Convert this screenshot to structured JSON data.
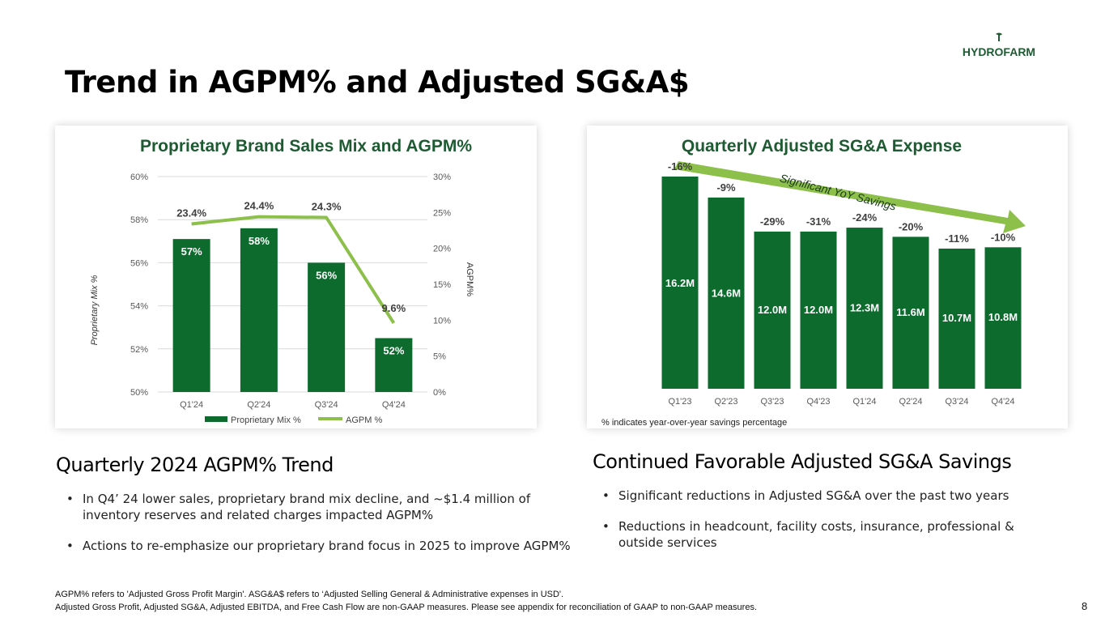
{
  "page": {
    "title": "Trend in AGPM% and Adjusted SG&A$",
    "logo_text": "HYDROFARM",
    "page_number": "8"
  },
  "colors": {
    "dark_green": "#0d6b2e",
    "mid_green": "#1b7a3a",
    "light_green": "#8cc04a",
    "title_green": "#1e5a32"
  },
  "left_chart": {
    "chart_data": {
      "type": "bar",
      "title": "Proprietary Brand Sales Mix and AGPM%",
      "categories": [
        "Q1'24",
        "Q2'24",
        "Q3'24",
        "Q4'24"
      ],
      "series": [
        {
          "name": "Proprietary Mix %",
          "type": "bar",
          "axis": "left",
          "values": [
            57.1,
            57.6,
            56.0,
            52.5
          ],
          "labels": [
            "57%",
            "58%",
            "56%",
            "52%"
          ]
        },
        {
          "name": "AGPM %",
          "type": "line",
          "axis": "right",
          "values": [
            23.4,
            24.4,
            24.3,
            9.6
          ],
          "labels": [
            "23.4%",
            "24.4%",
            "24.3%",
            "9.6%"
          ]
        }
      ],
      "ylabel": "Proprietary Mix %",
      "y2label": "AGPM%",
      "ylim": [
        50,
        60
      ],
      "y2lim": [
        0,
        30
      ],
      "yticks": [
        "50%",
        "52%",
        "54%",
        "56%",
        "58%",
        "60%"
      ],
      "y2ticks": [
        "0%",
        "5%",
        "10%",
        "15%",
        "20%",
        "25%",
        "30%"
      ],
      "legend": [
        "Proprietary Mix %",
        "AGPM %"
      ],
      "legend_position": "bottom",
      "grid": true
    }
  },
  "right_chart": {
    "chart_data": {
      "type": "bar",
      "title": "Quarterly Adjusted SG&A Expense",
      "categories": [
        "Q1'23",
        "Q2'23",
        "Q3'23",
        "Q4'23",
        "Q1'24",
        "Q2'24",
        "Q3'24",
        "Q4'24"
      ],
      "values": [
        16.2,
        14.6,
        12.0,
        12.0,
        12.3,
        11.6,
        10.7,
        10.8
      ],
      "value_labels": [
        "16.2M",
        "14.6M",
        "12.0M",
        "12.0M",
        "12.3M",
        "11.6M",
        "10.7M",
        "10.8M"
      ],
      "yoy_labels": [
        "-16%",
        "-9%",
        "-29%",
        "-31%",
        "-24%",
        "-20%",
        "-11%",
        "-10%"
      ],
      "annotation": "Significant YoY Savings",
      "grid": false
    },
    "note": "% indicates year-over-year savings percentage"
  },
  "left_section": {
    "heading": "Quarterly 2024 AGPM% Trend",
    "bullets": [
      "In Q4’ 24 lower sales, proprietary brand mix decline, and ~$1.4 million of inventory reserves and related charges impacted AGPM%",
      "Actions to re-emphasize our proprietary brand focus in 2025 to improve AGPM%"
    ]
  },
  "right_section": {
    "heading": "Continued Favorable Adjusted SG&A Savings",
    "bullets": [
      "Significant reductions in Adjusted SG&A over the past two years",
      "Reductions in headcount, facility costs, insurance, professional & outside services"
    ]
  },
  "footnotes": [
    "AGPM% refers to 'Adjusted Gross Profit Margin'. ASG&A$ refers to ‘Adjusted Selling General & Administrative expenses in USD'.",
    "Adjusted Gross Profit, Adjusted SG&A, Adjusted EBITDA, and Free Cash Flow are non-GAAP measures. Please see appendix for reconciliation of GAAP to non-GAAP measures."
  ]
}
